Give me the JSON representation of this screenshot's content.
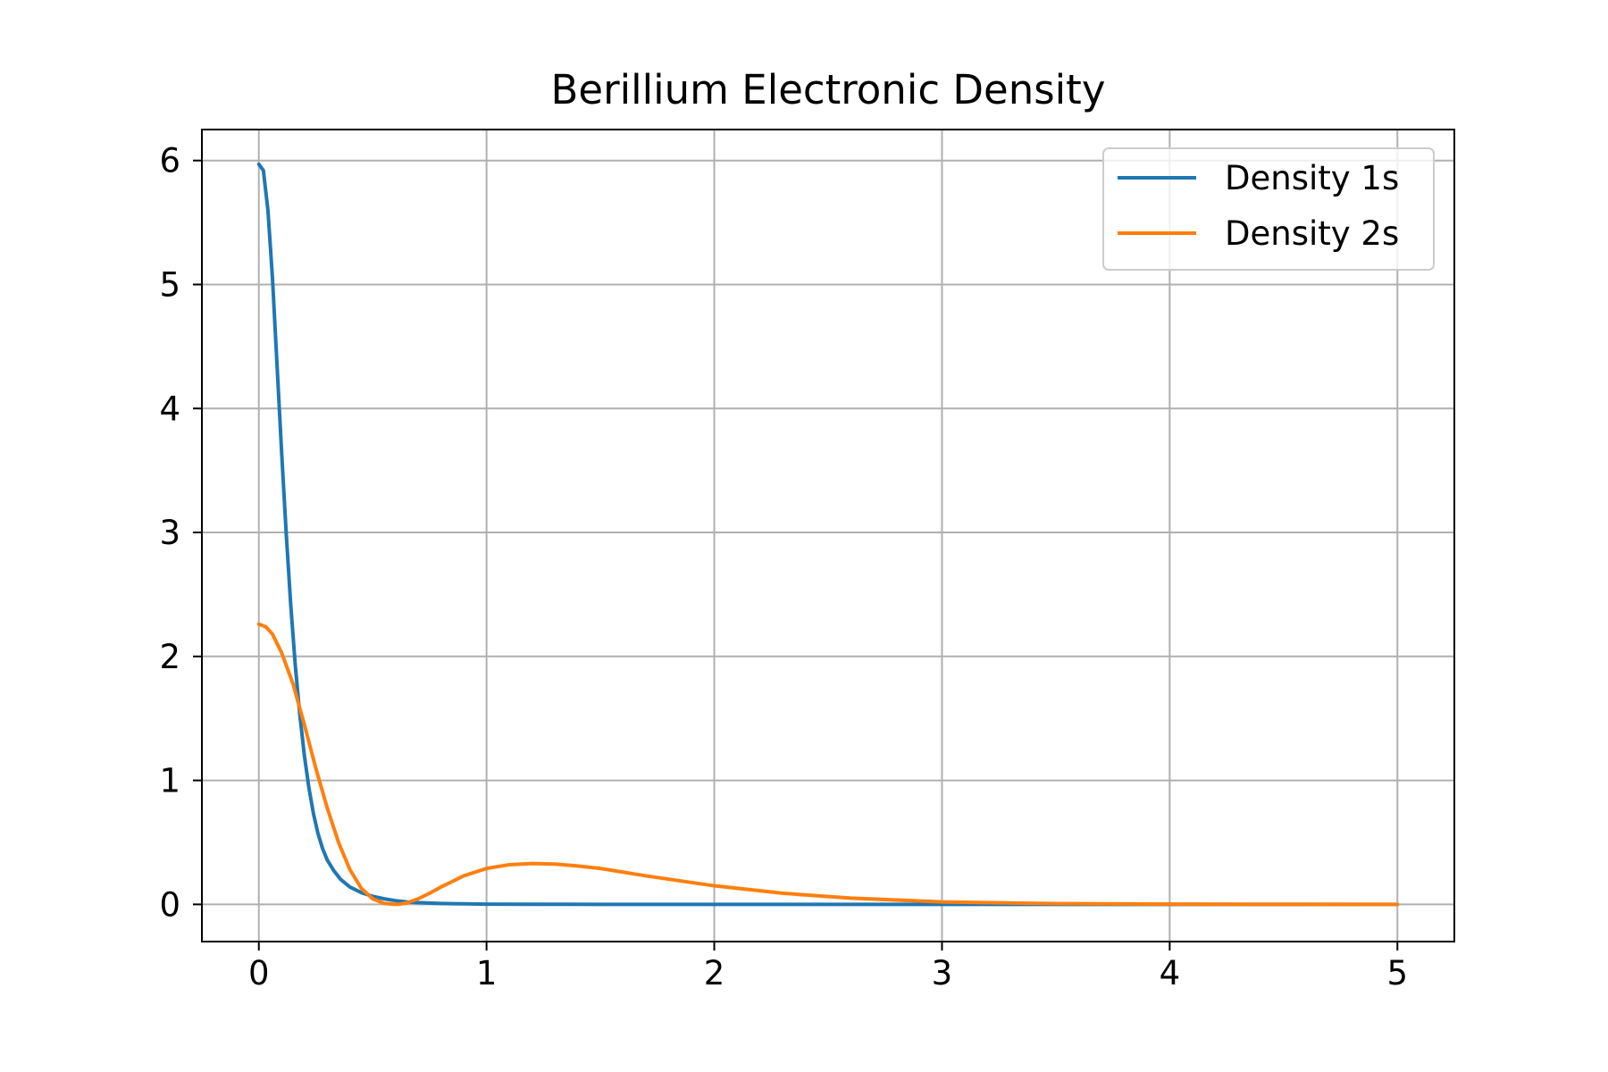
{
  "chart_data": {
    "type": "line",
    "title": "Berillium Electronic Density",
    "xlabel": "",
    "ylabel": "",
    "xlim": [
      -0.25,
      5.25
    ],
    "ylim": [
      -0.3,
      6.25
    ],
    "xticks": [
      "0",
      "1",
      "2",
      "3",
      "4",
      "5"
    ],
    "yticks": [
      "0",
      "1",
      "2",
      "3",
      "4",
      "5",
      "6"
    ],
    "grid": true,
    "legend_position": "top-right",
    "series": [
      {
        "name": "Density 1s",
        "color": "#1f77b4",
        "x": [
          0,
          0.02,
          0.04,
          0.06,
          0.08,
          0.1,
          0.12,
          0.14,
          0.16,
          0.18,
          0.2,
          0.22,
          0.24,
          0.26,
          0.28,
          0.3,
          0.33,
          0.36,
          0.4,
          0.45,
          0.5,
          0.55,
          0.6,
          0.65,
          0.7,
          0.8,
          0.9,
          1.0,
          1.2,
          1.5,
          2.0,
          2.5,
          3.0,
          3.5,
          4.0,
          4.5,
          5.0
        ],
        "y": [
          5.97,
          5.92,
          5.6,
          5.05,
          4.35,
          3.65,
          3.0,
          2.42,
          1.93,
          1.53,
          1.2,
          0.94,
          0.73,
          0.57,
          0.45,
          0.36,
          0.27,
          0.2,
          0.14,
          0.095,
          0.065,
          0.045,
          0.03,
          0.02,
          0.014,
          0.007,
          0.004,
          0.002,
          0.0007,
          0.0002,
          0,
          0,
          0,
          0,
          0,
          0,
          0
        ]
      },
      {
        "name": "Density 2s",
        "color": "#ff7f0e",
        "x": [
          0,
          0.03,
          0.06,
          0.1,
          0.15,
          0.2,
          0.25,
          0.3,
          0.35,
          0.4,
          0.45,
          0.5,
          0.55,
          0.6,
          0.62,
          0.65,
          0.7,
          0.75,
          0.8,
          0.9,
          1.0,
          1.1,
          1.2,
          1.3,
          1.4,
          1.5,
          1.7,
          2.0,
          2.3,
          2.6,
          3.0,
          3.5,
          4.0,
          4.5,
          5.0
        ],
        "y": [
          2.26,
          2.24,
          2.18,
          2.03,
          1.78,
          1.45,
          1.1,
          0.78,
          0.5,
          0.28,
          0.13,
          0.045,
          0.008,
          0.0,
          0.002,
          0.012,
          0.045,
          0.09,
          0.14,
          0.23,
          0.29,
          0.32,
          0.33,
          0.325,
          0.31,
          0.29,
          0.23,
          0.15,
          0.09,
          0.05,
          0.02,
          0.006,
          0.002,
          0.0005,
          0.0001
        ]
      }
    ]
  }
}
